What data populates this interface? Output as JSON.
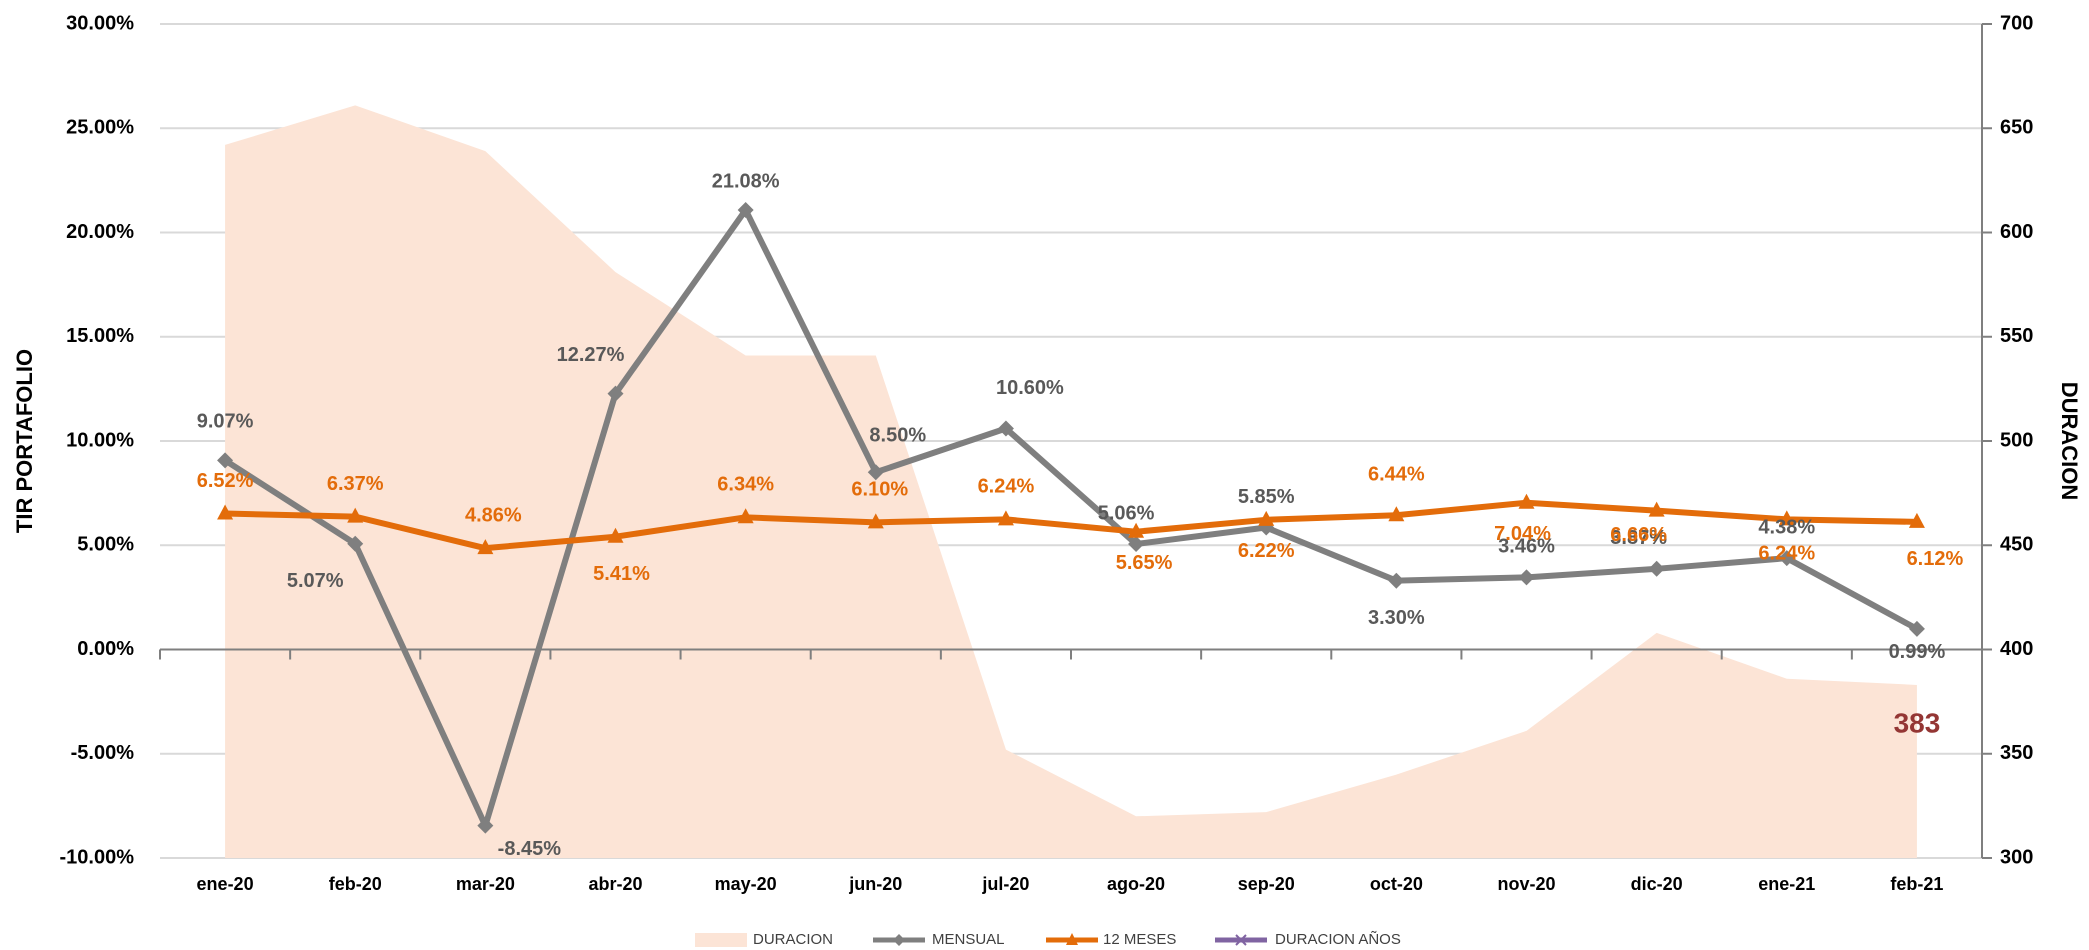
{
  "chart_data": {
    "type": "line",
    "y_label": "TIR PORTAFOLIO",
    "y2_label": "DURACION",
    "categories": [
      "ene-20",
      "feb-20",
      "mar-20",
      "abr-20",
      "may-20",
      "jun-20",
      "jul-20",
      "ago-20",
      "sep-20",
      "oct-20",
      "nov-20",
      "dic-20",
      "ene-21",
      "feb-21"
    ],
    "ylim": [
      -10,
      30
    ],
    "yticks": [
      {
        "value": -10,
        "label": "-10.00%"
      },
      {
        "value": -5,
        "label": "-5.00%"
      },
      {
        "value": 0,
        "label": "0.00%"
      },
      {
        "value": 5,
        "label": "5.00%"
      },
      {
        "value": 10,
        "label": "10.00%"
      },
      {
        "value": 15,
        "label": "15.00%"
      },
      {
        "value": 20,
        "label": "20.00%"
      },
      {
        "value": 25,
        "label": "25.00%"
      },
      {
        "value": 30,
        "label": "30.00%"
      }
    ],
    "y2lim": [
      300,
      700
    ],
    "y2ticks": [
      300,
      350,
      400,
      450,
      500,
      550,
      600,
      650,
      700
    ],
    "grid": true,
    "legend": "bottom",
    "series": [
      {
        "name": "DURACION",
        "type": "area",
        "axis": "y2",
        "color": "#fce4d6",
        "values": [
          642,
          661,
          639,
          581,
          541,
          541,
          352,
          320,
          322,
          340,
          361,
          408,
          386,
          383
        ],
        "value_labels": [
          null,
          null,
          null,
          null,
          null,
          null,
          null,
          null,
          null,
          null,
          null,
          null,
          null,
          "383"
        ],
        "label_color": "#943634"
      },
      {
        "name": "MENSUAL",
        "type": "line",
        "color": "#7f7f7f",
        "marker": "diamond",
        "label_color": "#595959",
        "values": [
          9.07,
          5.07,
          -8.45,
          12.27,
          21.08,
          8.5,
          10.6,
          5.06,
          5.85,
          3.3,
          3.46,
          3.87,
          4.38,
          0.99
        ],
        "value_labels": [
          "9.07%",
          "5.07%",
          "-8.45%",
          "12.27%",
          "21.08%",
          "8.50%",
          "10.60%",
          "5.06%",
          "5.85%",
          "3.30%",
          "3.46%",
          "3.87%",
          "4.38%",
          "0.99%"
        ]
      },
      {
        "name": "12 MESES",
        "type": "line",
        "color": "#e36c0a",
        "marker": "triangle",
        "label_color": "#e36c0a",
        "values": [
          6.52,
          6.37,
          4.86,
          5.41,
          6.34,
          6.1,
          6.24,
          5.65,
          6.22,
          6.44,
          7.04,
          6.66,
          6.24,
          6.12
        ],
        "value_labels": [
          "6.52%",
          "6.37%",
          "4.86%",
          "5.41%",
          "6.34%",
          "6.10%",
          "6.24%",
          "5.65%",
          "6.22%",
          "6.44%",
          "7.04%",
          "6.66%",
          "6.24%",
          "6.12%"
        ]
      },
      {
        "name": "DURACION AÑOS",
        "type": "line",
        "color": "#8064a2",
        "marker": "x",
        "values": [
          null,
          null,
          null,
          null,
          null,
          null,
          null,
          null,
          null,
          null,
          null,
          null,
          null,
          null
        ]
      }
    ]
  }
}
